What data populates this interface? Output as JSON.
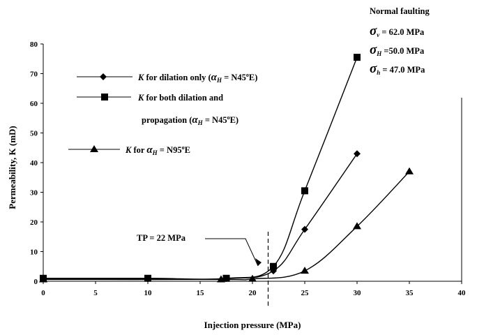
{
  "chart_data": {
    "type": "line",
    "xlabel": "Injection pressure (MPa)",
    "ylabel": "Permeability, K (mD)",
    "xlim": [
      0,
      40
    ],
    "ylim": [
      0,
      80
    ],
    "xticks": [
      "0",
      "5",
      "10",
      "15",
      "20",
      "25",
      "30",
      "35",
      "40"
    ],
    "yticks": [
      "0",
      "10",
      "20",
      "30",
      "40",
      "50",
      "60",
      "70",
      "80"
    ],
    "grid": false,
    "series": [
      {
        "name": "K for dilation only (αH = N45°E)",
        "name_parts": {
          "k": "K",
          "text": " for dilation only (",
          "alpha": "α",
          "sub": "H",
          "eq": " = N45",
          "sup": "o",
          "end": "E)"
        },
        "marker": "diamond",
        "x": [
          0,
          10,
          17.5,
          22,
          25,
          30
        ],
        "y": [
          0.8,
          0.8,
          0.9,
          3.5,
          17.5,
          43
        ]
      },
      {
        "name": "K for both dilation and propagation (αH = N45°E)",
        "name_parts": {
          "k": "K",
          "text1": " for both dilation and",
          "text2": "propagation (",
          "alpha": "α",
          "sub": "H",
          "eq": " = N45",
          "sup": "o",
          "end": "E)"
        },
        "marker": "square",
        "x": [
          0,
          10,
          17.5,
          22,
          25,
          30
        ],
        "y": [
          1,
          1,
          1,
          5,
          30.5,
          75.5
        ]
      },
      {
        "name": "K for αH = N95°E",
        "name_parts": {
          "k": "K",
          "text": " for ",
          "alpha": "α",
          "sub": "H",
          "eq": " = N95",
          "sup": "o",
          "end": "E"
        },
        "marker": "triangle",
        "x": [
          0,
          17,
          20,
          25,
          30,
          35
        ],
        "y": [
          0.6,
          0.6,
          0.8,
          3.5,
          18.5,
          37
        ]
      }
    ],
    "annotations": {
      "tp_label": "TP = 22 MPa",
      "tp_value": 21.5,
      "regime_title": "Normal faulting",
      "stresses": [
        {
          "sym": "σ",
          "sub": "v",
          "text": " = 62.0 MPa"
        },
        {
          "sym": "σ",
          "sub": "H",
          "text": " =50.0 MPa"
        },
        {
          "sym": "σ",
          "sub": "h",
          "text": " = 47.0 MPa"
        }
      ]
    }
  }
}
